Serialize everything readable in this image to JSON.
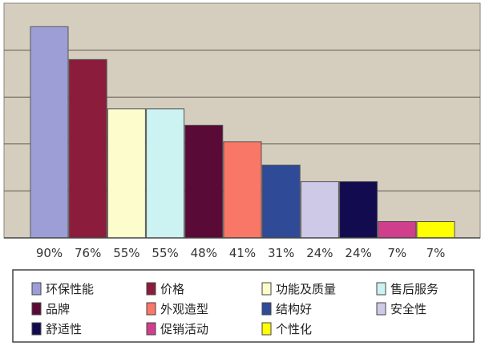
{
  "chart_data": {
    "type": "bar",
    "categories": [
      "环保性能",
      "价格",
      "功能及质量",
      "售后服务",
      "品牌",
      "外观造型",
      "结构好",
      "安全性",
      "舒适性",
      "促销活动",
      "个性化"
    ],
    "values": [
      90,
      76,
      55,
      55,
      48,
      41,
      31,
      24,
      24,
      7,
      7
    ],
    "value_labels": [
      "90%",
      "76%",
      "55%",
      "55%",
      "48%",
      "41%",
      "31%",
      "24%",
      "24%",
      "7%",
      "7%"
    ],
    "colors": [
      "#9d9ed6",
      "#8c1c3c",
      "#fcfccc",
      "#ccf2f2",
      "#5a0a36",
      "#f97766",
      "#2f4a97",
      "#cfc9e8",
      "#120b4f",
      "#cf3f8c",
      "#ffff00"
    ],
    "ylim": [
      0,
      100
    ],
    "grid": true,
    "legend_position": "bottom"
  }
}
